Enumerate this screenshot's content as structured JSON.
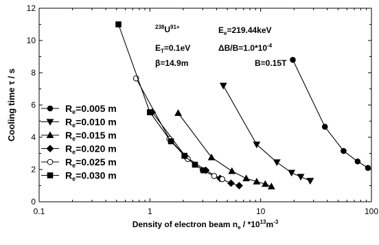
{
  "chart_data": {
    "type": "line",
    "xscale": "log",
    "xlim": [
      0.1,
      100
    ],
    "ylim": [
      0,
      12
    ],
    "x_ticks": [
      0.1,
      1,
      10,
      100
    ],
    "x_tick_labels": [
      "0.1",
      "1",
      "10",
      "100"
    ],
    "y_ticks": [
      0,
      2,
      4,
      6,
      8,
      10,
      12
    ],
    "y_tick_labels": [
      "0",
      "2",
      "4",
      "6",
      "8",
      "10",
      "12"
    ],
    "xlabel_main": "Density of electron beam n",
    "xlabel_sub": "e",
    "xlabel_unit": " / *10",
    "xlabel_exp": "13",
    "xlabel_unit2": "m",
    "xlabel_exp2": "-3",
    "ylabel": "Cooling time τ / s",
    "legend_position": "left",
    "annotations": {
      "ion_mass": "238",
      "ion_name": "U",
      "ion_charge": "91+",
      "ee_main": "E",
      "ee_sub": "e",
      "ee_value": "=219.44keV",
      "et_main": "E",
      "et_sub": "T",
      "et_value": "=0.1eV",
      "db": "ΔB/B=1.0*10",
      "db_exp": "-4",
      "beta": "β=14.9m",
      "b": "B=0.15T"
    },
    "series": [
      {
        "name": "R",
        "name_sub": "e",
        "name_value": "=0.005 m",
        "marker": "circle",
        "filled": true,
        "x": [
          19.5,
          38,
          56,
          75,
          93
        ],
        "y": [
          8.8,
          4.65,
          3.15,
          2.5,
          2.1
        ]
      },
      {
        "name": "R",
        "name_sub": "e",
        "name_value": "=0.010 m",
        "marker": "triangle-down",
        "filled": true,
        "x": [
          4.6,
          9.2,
          14,
          19,
          23,
          28
        ],
        "y": [
          7.2,
          3.55,
          2.45,
          1.8,
          1.55,
          1.3
        ]
      },
      {
        "name": "R",
        "name_sub": "e",
        "name_value": "=0.015 m",
        "marker": "triangle-up",
        "filled": true,
        "x": [
          1.8,
          3.6,
          5.5,
          7.4,
          9.2,
          11,
          12.5
        ],
        "y": [
          5.5,
          2.75,
          1.9,
          1.45,
          1.25,
          1.1,
          0.95
        ]
      },
      {
        "name": "R",
        "name_sub": "e",
        "name_value": "=0.020 m",
        "marker": "diamond",
        "filled": true,
        "x": [
          1.05,
          2.1,
          3.2,
          4.3,
          5.4,
          6.4
        ],
        "y": [
          5.55,
          2.8,
          1.95,
          1.45,
          1.15,
          1.0
        ]
      },
      {
        "name": "R",
        "name_sub": "e",
        "name_value": "=0.025 m",
        "marker": "circle",
        "filled": false,
        "x": [
          0.75,
          1.5,
          2.2,
          3.0,
          3.8,
          4.5
        ],
        "y": [
          7.65,
          3.9,
          2.65,
          1.95,
          1.6,
          1.4
        ]
      },
      {
        "name": "R",
        "name_sub": "e",
        "name_value": "=0.030 m",
        "marker": "square",
        "filled": true,
        "x": [
          0.52,
          1.0,
          1.55,
          2.05,
          2.55,
          3.05
        ],
        "y": [
          11.0,
          5.55,
          3.75,
          2.85,
          2.3,
          1.95
        ]
      }
    ]
  }
}
